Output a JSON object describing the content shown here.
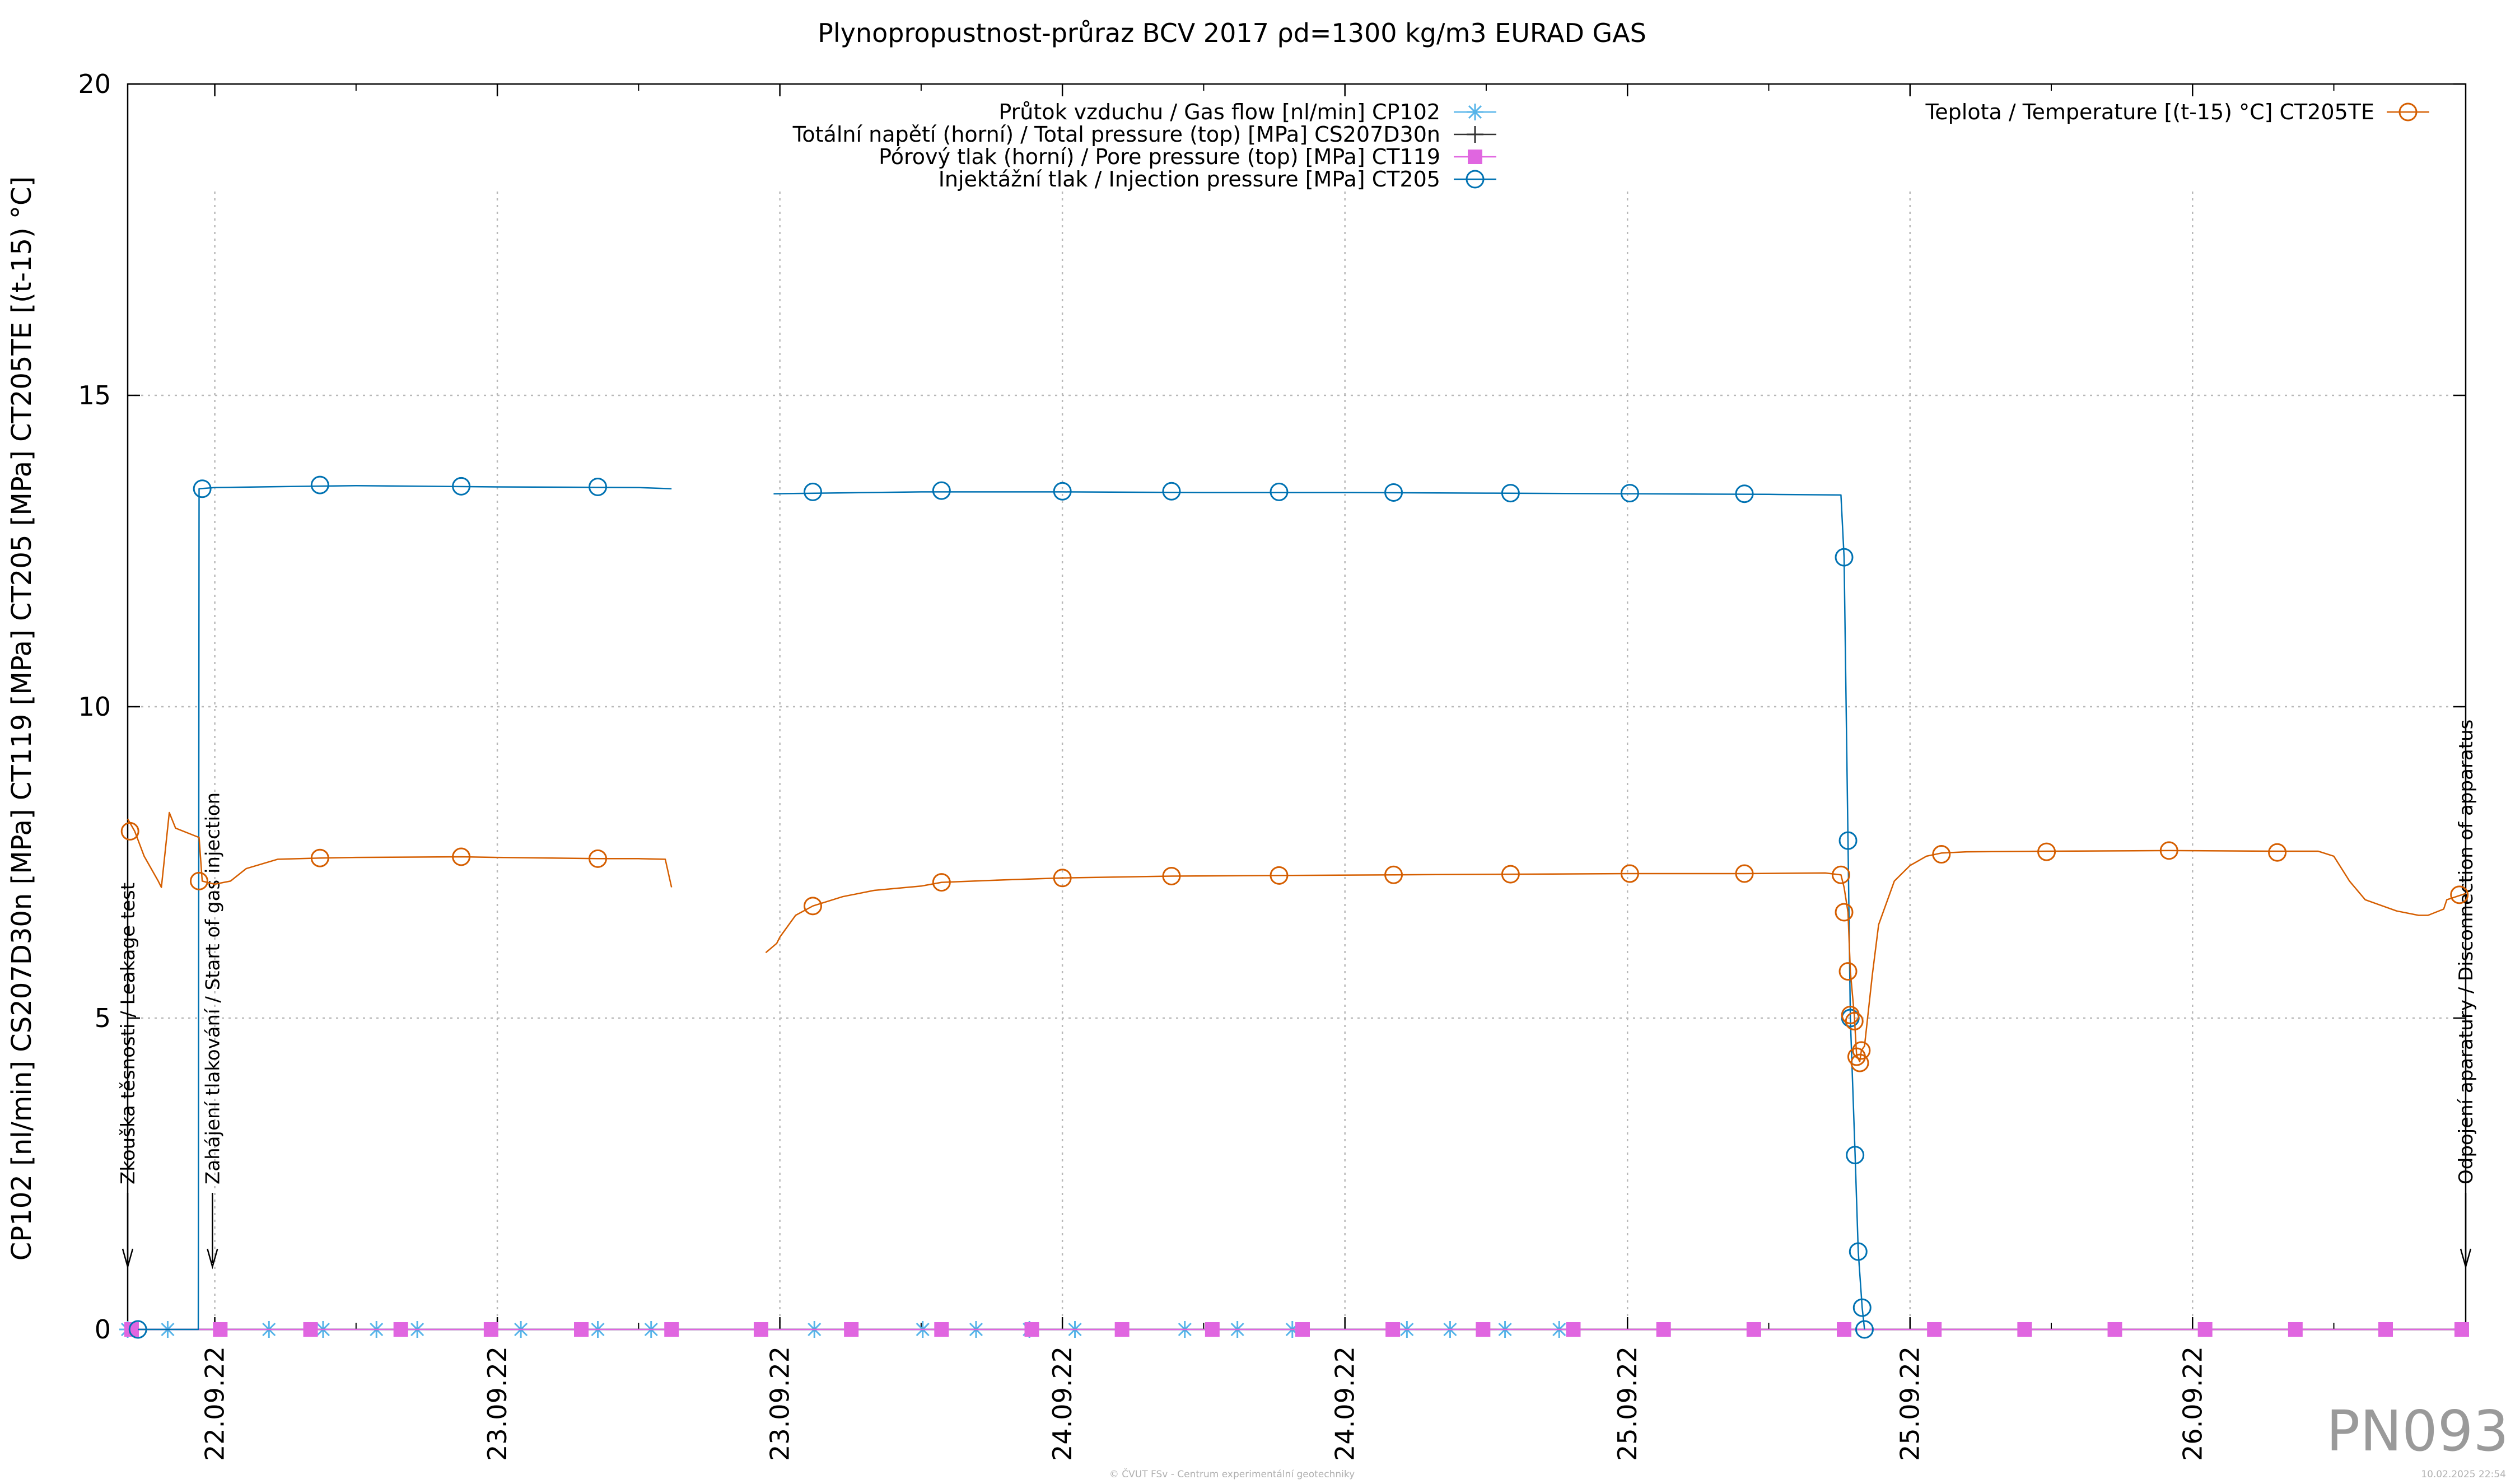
{
  "chart_data": {
    "type": "line",
    "title": "Plynopropustnost-průraz BCV 2017 ρd=1300 kg/m3 EURAD GAS",
    "ylabel": "CP102 [nl/min] CS207D30n [MPa] CT119 [MPa] CT205 [MPa] CT205TE [(t-15) °C]",
    "xlabel": "",
    "ylim": [
      0,
      20
    ],
    "y_ticks": [
      0,
      5,
      10,
      15,
      20
    ],
    "y_tick_labels": [
      "0",
      "5",
      "10",
      "15",
      "20"
    ],
    "x_unit": "day index from 22.09.22 00:00",
    "xlim": [
      -0.3083,
      7.9667
    ],
    "x_ticks": [
      0,
      1,
      2,
      3,
      4,
      5,
      6,
      7
    ],
    "x_tick_labels": [
      "22.09.22",
      "23.09.22",
      "23.09.22",
      "24.09.22",
      "24.09.22",
      "25.09.22",
      "25.09.22",
      "26.09.22"
    ],
    "grid": true,
    "legend_left": [
      "Průtok vzduchu / Gas flow [nl/min] CP102",
      "Totální napětí (horní) / Total pressure (top) [MPa] CS207D30n",
      "Pórový tlak (horní) / Pore pressure (top) [MPa] CT119",
      "Injektážní tlak / Injection pressure [MPa] CT205"
    ],
    "legend_right": [
      "Teplota / Temperature [(t-15) °C] CT205TE"
    ],
    "annotations": [
      {
        "text": "Zkouška těsnosti / Leakage test",
        "x": -0.3083
      },
      {
        "text": "Zahájení tlakování / Start of gas injection",
        "x": -0.0083
      },
      {
        "text": "Odpojení aparatury / Disconnection of apparatus",
        "x": 7.9667
      }
    ],
    "series": [
      {
        "name": "Průtok vzduchu / Gas flow [nl/min] CP102",
        "color": "#56b4e9",
        "marker": "asterisk",
        "values": [
          [
            -0.3083,
            0
          ],
          [
            1.6167,
            0
          ],
          [
            1.9778,
            0
          ],
          [
            4.0528,
            0
          ]
        ],
        "markers": [
          [
            -0.3083,
            0
          ],
          [
            -0.1667,
            0
          ],
          [
            0.1917,
            0
          ],
          [
            0.3833,
            0
          ],
          [
            0.5722,
            0
          ],
          [
            0.7167,
            0
          ],
          [
            1.0833,
            0
          ],
          [
            1.3556,
            0
          ],
          [
            1.5444,
            0
          ],
          [
            2.1222,
            0
          ],
          [
            2.5056,
            0
          ],
          [
            2.6944,
            0
          ],
          [
            2.8833,
            0
          ],
          [
            3.0444,
            0
          ],
          [
            3.4333,
            0
          ],
          [
            3.6194,
            0
          ],
          [
            3.8139,
            0
          ],
          [
            4.2194,
            0
          ],
          [
            4.3722,
            0
          ],
          [
            4.5667,
            0
          ],
          [
            4.7583,
            0
          ]
        ]
      },
      {
        "name": "Totální napětí (horní) / Total pressure (top) [MPa] CS207D30n",
        "color": "#333333",
        "marker": "plus",
        "values": [
          [
            -0.3083,
            0
          ],
          [
            7.9667,
            0
          ]
        ],
        "markers": []
      },
      {
        "name": "Pórový tlak (horní) / Pore pressure (top) [MPa] CT119",
        "color": "#e066e0",
        "marker": "square",
        "values": [
          [
            -0.3083,
            0
          ],
          [
            7.9667,
            0
          ]
        ],
        "markers": [
          [
            -0.2944,
            0
          ],
          [
            0.0194,
            0
          ],
          [
            0.3389,
            0
          ],
          [
            0.6583,
            0
          ],
          [
            0.9778,
            0
          ],
          [
            1.2972,
            0
          ],
          [
            1.6167,
            0
          ],
          [
            1.9333,
            0
          ],
          [
            2.2528,
            0
          ],
          [
            2.5722,
            0
          ],
          [
            2.8917,
            0
          ],
          [
            3.2111,
            0
          ],
          [
            3.5306,
            0
          ],
          [
            3.85,
            0
          ],
          [
            4.1694,
            0
          ],
          [
            4.4889,
            0
          ],
          [
            4.8083,
            0
          ],
          [
            5.1278,
            0
          ],
          [
            5.4472,
            0
          ],
          [
            5.7667,
            0
          ],
          [
            6.0861,
            0
          ],
          [
            6.4056,
            0
          ],
          [
            6.725,
            0
          ],
          [
            7.0444,
            0
          ],
          [
            7.3639,
            0
          ],
          [
            7.6833,
            0
          ],
          [
            7.9528,
            0
          ]
        ]
      },
      {
        "name": "Injektážní tlak / Injection pressure [MPa] CT205",
        "color": "#0072b2",
        "marker": "circle",
        "segments": [
          [
            [
              -0.2722,
              0
            ],
            [
              -0.0583,
              0
            ],
            [
              -0.0556,
              13.5
            ],
            [
              0,
              13.52
            ],
            [
              0.5,
              13.55
            ],
            [
              1.0,
              13.53
            ],
            [
              1.5,
              13.52
            ],
            [
              1.6167,
              13.5
            ]
          ],
          [
            [
              1.9778,
              13.42
            ],
            [
              2.5,
              13.45
            ],
            [
              3.0,
              13.45
            ],
            [
              3.5,
              13.44
            ],
            [
              4.0,
              13.44
            ],
            [
              4.5,
              13.43
            ],
            [
              5.0,
              13.42
            ],
            [
              5.5,
              13.41
            ],
            [
              5.7556,
              13.4
            ],
            [
              5.7667,
              12.4
            ],
            [
              5.7806,
              7.85
            ],
            [
              5.7889,
              5.0
            ],
            [
              5.8056,
              2.8
            ],
            [
              5.8167,
              1.25
            ],
            [
              5.8306,
              0.35
            ],
            [
              5.8389,
              0
            ]
          ]
        ],
        "markers": [
          [
            -0.2722,
            0
          ],
          [
            -0.0444,
            13.5
          ],
          [
            0.3722,
            13.56
          ],
          [
            0.8722,
            13.54
          ],
          [
            1.3556,
            13.53
          ],
          [
            2.1167,
            13.45
          ],
          [
            2.5722,
            13.47
          ],
          [
            3.0,
            13.46
          ],
          [
            3.3861,
            13.46
          ],
          [
            3.7667,
            13.45
          ],
          [
            4.1722,
            13.44
          ],
          [
            4.5861,
            13.43
          ],
          [
            5.0083,
            13.43
          ],
          [
            5.4139,
            13.42
          ],
          [
            5.7667,
            12.4
          ],
          [
            5.7806,
            7.85
          ],
          [
            5.7889,
            5.0
          ],
          [
            5.8056,
            2.8
          ],
          [
            5.8167,
            1.25
          ],
          [
            5.8306,
            0.35
          ],
          [
            5.8389,
            0
          ]
        ]
      },
      {
        "name": "Teplota / Temperature [(t-15) °C] CT205TE",
        "color": "#d55e00",
        "marker": "circle",
        "segments": [
          [
            [
              -0.3083,
              8.2
            ],
            [
              -0.2833,
              8.0
            ],
            [
              -0.25,
              7.6
            ],
            [
              -0.2,
              7.2
            ],
            [
              -0.1889,
              7.1
            ],
            [
              -0.1611,
              8.3
            ],
            [
              -0.1389,
              8.05
            ],
            [
              -0.0556,
              7.9
            ],
            [
              -0.0444,
              7.2
            ],
            [
              0.0,
              7.15
            ],
            [
              0.0556,
              7.2
            ],
            [
              0.1111,
              7.4
            ],
            [
              0.2222,
              7.55
            ],
            [
              0.3722,
              7.57
            ],
            [
              0.5,
              7.58
            ],
            [
              0.8722,
              7.59
            ],
            [
              1.0,
              7.58
            ],
            [
              1.3556,
              7.56
            ],
            [
              1.5,
              7.56
            ],
            [
              1.5944,
              7.55
            ],
            [
              1.6167,
              7.1
            ]
          ],
          [
            [
              1.95,
              6.05
            ],
            [
              1.9889,
              6.2
            ],
            [
              2.0,
              6.3
            ],
            [
              2.0556,
              6.65
            ],
            [
              2.1167,
              6.8
            ],
            [
              2.2222,
              6.95
            ],
            [
              2.3333,
              7.05
            ],
            [
              2.5,
              7.12
            ],
            [
              2.5722,
              7.18
            ],
            [
              2.8,
              7.22
            ],
            [
              3.0,
              7.25
            ],
            [
              3.3861,
              7.28
            ],
            [
              3.7667,
              7.29
            ],
            [
              4.1722,
              7.3
            ],
            [
              4.5861,
              7.31
            ],
            [
              5.0083,
              7.32
            ],
            [
              5.4139,
              7.32
            ],
            [
              5.7,
              7.33
            ],
            [
              5.7556,
              7.3
            ],
            [
              5.7667,
              7.1
            ],
            [
              5.7806,
              6.7
            ],
            [
              5.7889,
              5.75
            ],
            [
              5.8028,
              5.05
            ],
            [
              5.8111,
              4.4
            ],
            [
              5.8222,
              4.3
            ],
            [
              5.8278,
              4.48
            ],
            [
              5.8389,
              4.55
            ],
            [
              5.8667,
              5.7
            ],
            [
              5.8889,
              6.5
            ],
            [
              5.9444,
              7.2
            ],
            [
              6.0,
              7.45
            ],
            [
              6.0583,
              7.6
            ],
            [
              6.1111,
              7.65
            ],
            [
              6.2,
              7.67
            ],
            [
              6.4833,
              7.68
            ],
            [
              6.9167,
              7.69
            ],
            [
              7.3,
              7.68
            ],
            [
              7.4444,
              7.68
            ],
            [
              7.5,
              7.6
            ],
            [
              7.5556,
              7.2
            ],
            [
              7.6111,
              6.9
            ],
            [
              7.7222,
              6.72
            ],
            [
              7.8,
              6.65
            ],
            [
              7.8333,
              6.65
            ],
            [
              7.8889,
              6.75
            ],
            [
              7.9,
              6.9
            ],
            [
              7.9667,
              7.0
            ]
          ]
        ],
        "markers": [
          [
            -0.3,
            8.0
          ],
          [
            -0.0556,
            7.2
          ],
          [
            0.3722,
            7.57
          ],
          [
            0.8722,
            7.59
          ],
          [
            1.3556,
            7.56
          ],
          [
            2.1167,
            6.8
          ],
          [
            2.5722,
            7.18
          ],
          [
            3.0,
            7.25
          ],
          [
            3.3861,
            7.28
          ],
          [
            3.7667,
            7.29
          ],
          [
            4.1722,
            7.3
          ],
          [
            4.5861,
            7.31
          ],
          [
            5.0083,
            7.32
          ],
          [
            5.4139,
            7.32
          ],
          [
            5.7556,
            7.3
          ],
          [
            5.7667,
            6.7
          ],
          [
            5.7806,
            5.75
          ],
          [
            5.7889,
            5.05
          ],
          [
            5.8028,
            4.95
          ],
          [
            5.8111,
            4.38
          ],
          [
            5.8222,
            4.28
          ],
          [
            5.8278,
            4.48
          ],
          [
            6.1111,
            7.63
          ],
          [
            6.4833,
            7.67
          ],
          [
            6.9167,
            7.69
          ],
          [
            7.3,
            7.66
          ],
          [
            7.9444,
            6.98
          ]
        ]
      }
    ]
  },
  "watermark": {
    "code": "PN093",
    "footer_center": "© ČVUT FSv - Centrum experimentální geotechniky",
    "footer_right": "10.02.2025 22:54"
  }
}
